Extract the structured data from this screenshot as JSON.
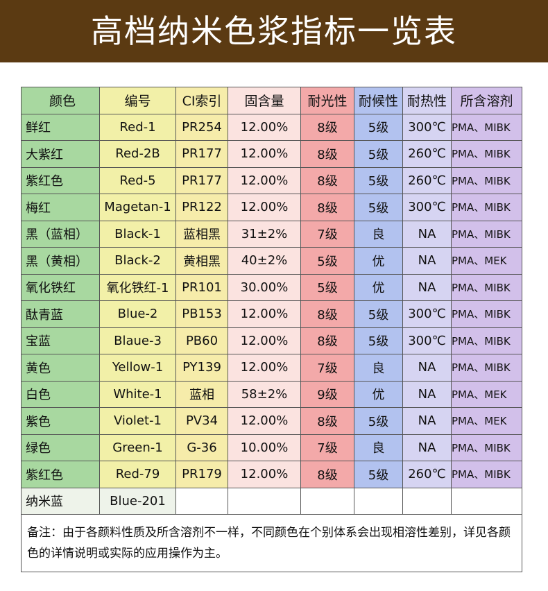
{
  "header": {
    "title": "高档纳米色浆指标一览表"
  },
  "table": {
    "columns": [
      "颜色",
      "编号",
      "CI索引",
      "固含量",
      "耐光性",
      "耐候性",
      "耐热性",
      "所含溶剂"
    ],
    "rows": [
      [
        "鲜红",
        "Red-1",
        "PR254",
        "12.00%",
        "8级",
        "5级",
        "300℃",
        "PMA、MIBK"
      ],
      [
        "大紫红",
        "Red-2B",
        "PR177",
        "12.00%",
        "8级",
        "5级",
        "260℃",
        "PMA、MIBK"
      ],
      [
        "紫红色",
        "Red-5",
        "PR177",
        "12.00%",
        "8级",
        "5级",
        "260℃",
        "PMA、MIBK"
      ],
      [
        "梅红",
        "Magetan-1",
        "PR122",
        "12.00%",
        "8级",
        "5级",
        "300℃",
        "PMA、MIBK"
      ],
      [
        "黑（蓝相）",
        "Black-1",
        "蓝相黑",
        "31±2%",
        "7级",
        "良",
        "NA",
        "PMA、MIBK"
      ],
      [
        "黑（黄相）",
        "Black-2",
        "黄相黑",
        "40±2%",
        "5级",
        "优",
        "NA",
        "PMA、MEK"
      ],
      [
        "氧化铁红",
        "氧化铁红-1",
        "PR101",
        "30.00%",
        "5级",
        "优",
        "NA",
        "PMA、MIBK"
      ],
      [
        "酞青蓝",
        "Blue-2",
        "PB153",
        "12.00%",
        "8级",
        "5级",
        "300℃",
        "PMA、MIBK"
      ],
      [
        "宝蓝",
        "Blaue-3",
        "PB60",
        "12.00%",
        "8级",
        "5级",
        "300℃",
        "PMA、MIBK"
      ],
      [
        "黄色",
        "Yellow-1",
        "PY139",
        "12.00%",
        "7级",
        "良",
        "NA",
        "PMA、MIBK"
      ],
      [
        "白色",
        "White-1",
        "蓝相",
        "58±2%",
        "9级",
        "优",
        "NA",
        "PMA、MEK"
      ],
      [
        "紫色",
        "Violet-1",
        "PV34",
        "12.00%",
        "8级",
        "5级",
        "NA",
        "PMA、MEK"
      ],
      [
        "绿色",
        "Green-1",
        "G-36",
        "10.00%",
        "7级",
        "良",
        "NA",
        "PMA、MIBK"
      ],
      [
        "紫红色",
        "Red-79",
        "PR179",
        "12.00%",
        "8级",
        "5级",
        "260℃",
        "PMA、MIBK"
      ],
      [
        "纳米蓝",
        "Blue-201"
      ]
    ],
    "note": "备注：由于各颜料性质及所含溶剂不一样，不同颜色在个别体系会出现相溶性差别，详见各颜色的详情说明或实际的应用操作为主。"
  }
}
